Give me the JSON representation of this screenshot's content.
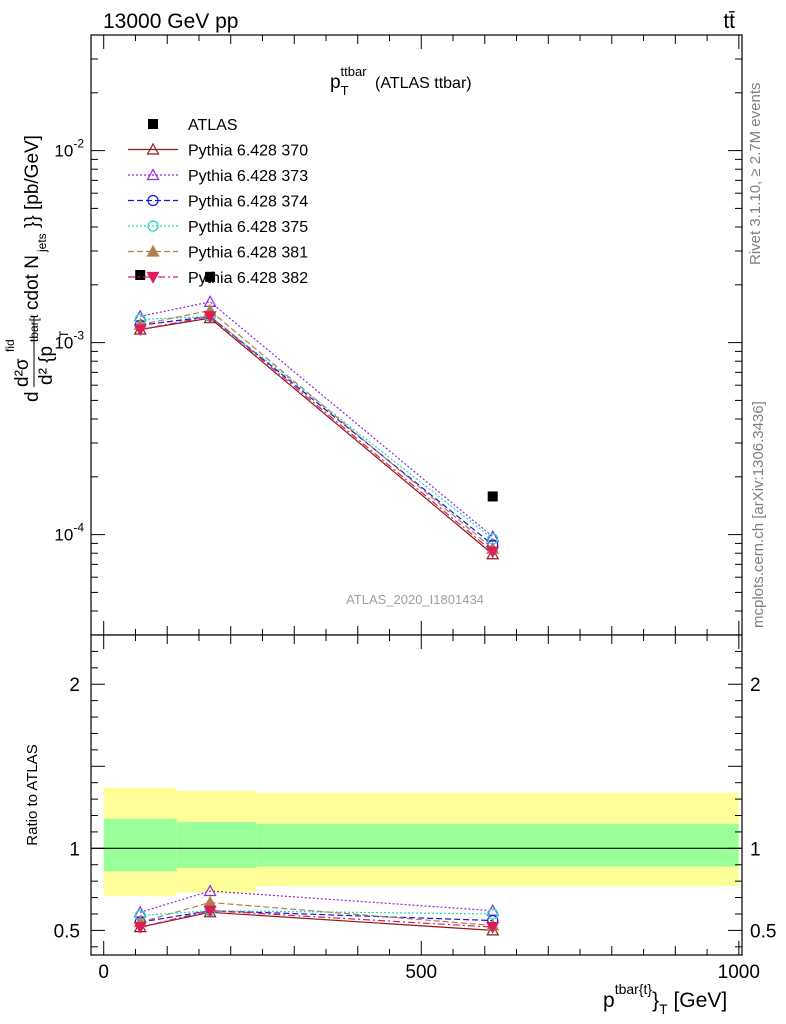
{
  "header": {
    "left": "13000 GeV pp",
    "right": "tt̄"
  },
  "side_labels": {
    "rivet": "Rivet 3.1.10, ≥ 2.7M events",
    "mcplots": "mcplots.cern.ch [arXiv:1306.3436]"
  },
  "chart_data": [
    {
      "type": "scatter",
      "panel": "main",
      "title": "p_T^{ttbar} (ATLAS ttbar)",
      "ylabel": "d d²σ^{fid} / d² {p_T^{tbar[t]}} cdot N_{jets}}} [pb/GeV]",
      "xlabel": "",
      "yscale": "log",
      "ylim": [
        3e-05,
        0.04
      ],
      "xlim": [
        -20,
        1005
      ],
      "grid": false,
      "legend_position": "top-left",
      "watermark": "ATLAS_2020_I1801434",
      "y_tick_labels": [
        "10^{-4}",
        "10^{-3}",
        "10^{-2}"
      ],
      "x": [
        57.5,
        167.5,
        612.5
      ],
      "series": [
        {
          "name": "ATLAS",
          "color": "#000000",
          "marker": "square-filled",
          "line": "none",
          "values": [
            0.00225,
            0.0022,
            0.000158
          ]
        },
        {
          "name": "Pythia 6.428 370",
          "color": "#8b1a1a",
          "marker": "triangle-up-open",
          "line": "solid",
          "values": [
            0.00117,
            0.00134,
            7.9e-05
          ]
        },
        {
          "name": "Pythia 6.428 373",
          "color": "#8a2be2",
          "marker": "triangle-up-open",
          "line": "dotted",
          "values": [
            0.00137,
            0.00163,
            9.75e-05
          ]
        },
        {
          "name": "Pythia 6.428 374",
          "color": "#1515d8",
          "marker": "circle-open",
          "line": "dashed",
          "values": [
            0.00123,
            0.00137,
            8.85e-05
          ]
        },
        {
          "name": "Pythia 6.428 375",
          "color": "#20d8c0",
          "marker": "circle-open",
          "line": "dotted",
          "values": [
            0.00132,
            0.00137,
            9.5e-05
          ]
        },
        {
          "name": "Pythia 6.428 381",
          "color": "#b0804a",
          "marker": "triangle-up-filled",
          "line": "dashed",
          "values": [
            0.00124,
            0.00147,
            8.45e-05
          ]
        },
        {
          "name": "Pythia 6.428 382",
          "color": "#dc1d5a",
          "marker": "triangle-down-filled",
          "line": "dashdot",
          "values": [
            0.00117,
            0.00137,
            8.15e-05
          ]
        }
      ]
    },
    {
      "type": "scatter",
      "panel": "ratio",
      "ylabel": "Ratio to ATLAS",
      "xlabel": "p^{tbar{t}}}_T [GeV]",
      "ylim": [
        0.35,
        2.3
      ],
      "xlim": [
        -20,
        1005
      ],
      "x_tick_labels": [
        "0",
        "500",
        "1000"
      ],
      "y_tick_labels": [
        "0.5",
        "1",
        "2"
      ],
      "bands": {
        "bins": [
          [
            0,
            115
          ],
          [
            115,
            240
          ],
          [
            240,
            1000
          ]
        ],
        "stat_syst_yellow": [
          [
            0.71,
            1.37
          ],
          [
            0.73,
            1.35
          ],
          [
            0.77,
            1.34
          ]
        ],
        "stat_green": [
          [
            0.86,
            1.18
          ],
          [
            0.88,
            1.16
          ],
          [
            0.89,
            1.15
          ]
        ]
      },
      "x": [
        57.5,
        167.5,
        612.5
      ],
      "series": [
        {
          "name": "Pythia 6.428 370",
          "color": "#8b1a1a",
          "values": [
            0.52,
            0.61,
            0.5
          ]
        },
        {
          "name": "Pythia 6.428 373",
          "color": "#8a2be2",
          "values": [
            0.61,
            0.74,
            0.62
          ]
        },
        {
          "name": "Pythia 6.428 374",
          "color": "#1515d8",
          "values": [
            0.55,
            0.62,
            0.56
          ]
        },
        {
          "name": "Pythia 6.428 375",
          "color": "#20d8c0",
          "values": [
            0.59,
            0.62,
            0.6
          ]
        },
        {
          "name": "Pythia 6.428 381",
          "color": "#b0804a",
          "values": [
            0.55,
            0.67,
            0.53
          ]
        },
        {
          "name": "Pythia 6.428 382",
          "color": "#dc1d5a",
          "values": [
            0.52,
            0.62,
            0.52
          ]
        }
      ]
    }
  ]
}
